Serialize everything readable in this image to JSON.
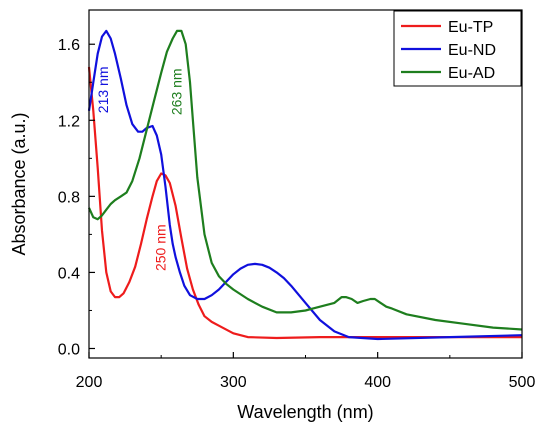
{
  "chart_data": {
    "type": "line",
    "xlabel": "Wavelength (nm)",
    "ylabel": "Absorbance (a.u.)",
    "xlim": [
      200,
      500
    ],
    "ylim": [
      -0.05,
      1.78
    ],
    "xticks": [
      200,
      300,
      400,
      500
    ],
    "yticks": [
      0.0,
      0.4,
      0.8,
      1.2,
      1.6
    ],
    "xtick_labels": [
      "200",
      "300",
      "400",
      "500"
    ],
    "ytick_labels": [
      "0.0",
      "0.4",
      "0.8",
      "1.2",
      "1.6"
    ],
    "grid": false,
    "legend_position": "top-right",
    "series": [
      {
        "name": "Eu-TP",
        "color": "#ee1c1c",
        "x": [
          200,
          203,
          206,
          209,
          212,
          215,
          218,
          221,
          224,
          228,
          232,
          236,
          240,
          244,
          247,
          250,
          253,
          256,
          260,
          264,
          268,
          272,
          276,
          280,
          285,
          290,
          300,
          310,
          330,
          360,
          400,
          450,
          500
        ],
        "y": [
          1.48,
          1.25,
          0.95,
          0.62,
          0.4,
          0.3,
          0.27,
          0.27,
          0.29,
          0.35,
          0.43,
          0.55,
          0.68,
          0.8,
          0.88,
          0.92,
          0.91,
          0.87,
          0.75,
          0.58,
          0.42,
          0.31,
          0.23,
          0.17,
          0.14,
          0.12,
          0.08,
          0.06,
          0.055,
          0.06,
          0.06,
          0.06,
          0.06
        ]
      },
      {
        "name": "Eu-ND",
        "color": "#1010dd",
        "x": [
          200,
          203,
          206,
          209,
          212,
          215,
          218,
          222,
          226,
          230,
          234,
          237,
          240,
          244,
          247,
          250,
          253,
          256,
          258,
          260,
          263,
          266,
          270,
          275,
          280,
          285,
          290,
          295,
          300,
          305,
          310,
          315,
          320,
          325,
          330,
          335,
          340,
          350,
          360,
          370,
          380,
          400,
          450,
          500
        ],
        "y": [
          1.25,
          1.4,
          1.55,
          1.64,
          1.67,
          1.63,
          1.55,
          1.42,
          1.28,
          1.18,
          1.14,
          1.14,
          1.16,
          1.17,
          1.12,
          1.02,
          0.85,
          0.65,
          0.55,
          0.48,
          0.4,
          0.33,
          0.28,
          0.26,
          0.26,
          0.28,
          0.31,
          0.35,
          0.39,
          0.42,
          0.44,
          0.445,
          0.44,
          0.425,
          0.4,
          0.37,
          0.33,
          0.24,
          0.15,
          0.09,
          0.06,
          0.05,
          0.06,
          0.07
        ]
      },
      {
        "name": "Eu-AD",
        "color": "#1e7e1e",
        "x": [
          200,
          203,
          206,
          209,
          212,
          215,
          218,
          222,
          226,
          230,
          235,
          240,
          245,
          250,
          254,
          258,
          261,
          264,
          267,
          270,
          272,
          275,
          280,
          285,
          290,
          295,
          300,
          310,
          320,
          330,
          340,
          350,
          355,
          360,
          365,
          370,
          375,
          378,
          382,
          386,
          390,
          395,
          398,
          402,
          406,
          410,
          420,
          440,
          460,
          480,
          500
        ],
        "y": [
          0.74,
          0.69,
          0.68,
          0.7,
          0.73,
          0.76,
          0.78,
          0.8,
          0.82,
          0.88,
          1.0,
          1.15,
          1.3,
          1.45,
          1.56,
          1.63,
          1.67,
          1.67,
          1.6,
          1.4,
          1.2,
          0.9,
          0.6,
          0.45,
          0.38,
          0.34,
          0.31,
          0.26,
          0.22,
          0.19,
          0.19,
          0.2,
          0.21,
          0.22,
          0.23,
          0.24,
          0.27,
          0.27,
          0.26,
          0.24,
          0.25,
          0.26,
          0.26,
          0.24,
          0.22,
          0.21,
          0.18,
          0.15,
          0.13,
          0.11,
          0.1
        ]
      }
    ],
    "annotations": [
      {
        "text": "213 nm",
        "x": 213,
        "y": 1.36,
        "color": "#1010dd",
        "rotation": -90
      },
      {
        "text": "263 nm",
        "x": 264,
        "y": 1.35,
        "color": "#1e7e1e",
        "rotation": -90
      },
      {
        "text": "250 nm",
        "x": 253,
        "y": 0.53,
        "color": "#ee1c1c",
        "rotation": -90
      }
    ]
  }
}
